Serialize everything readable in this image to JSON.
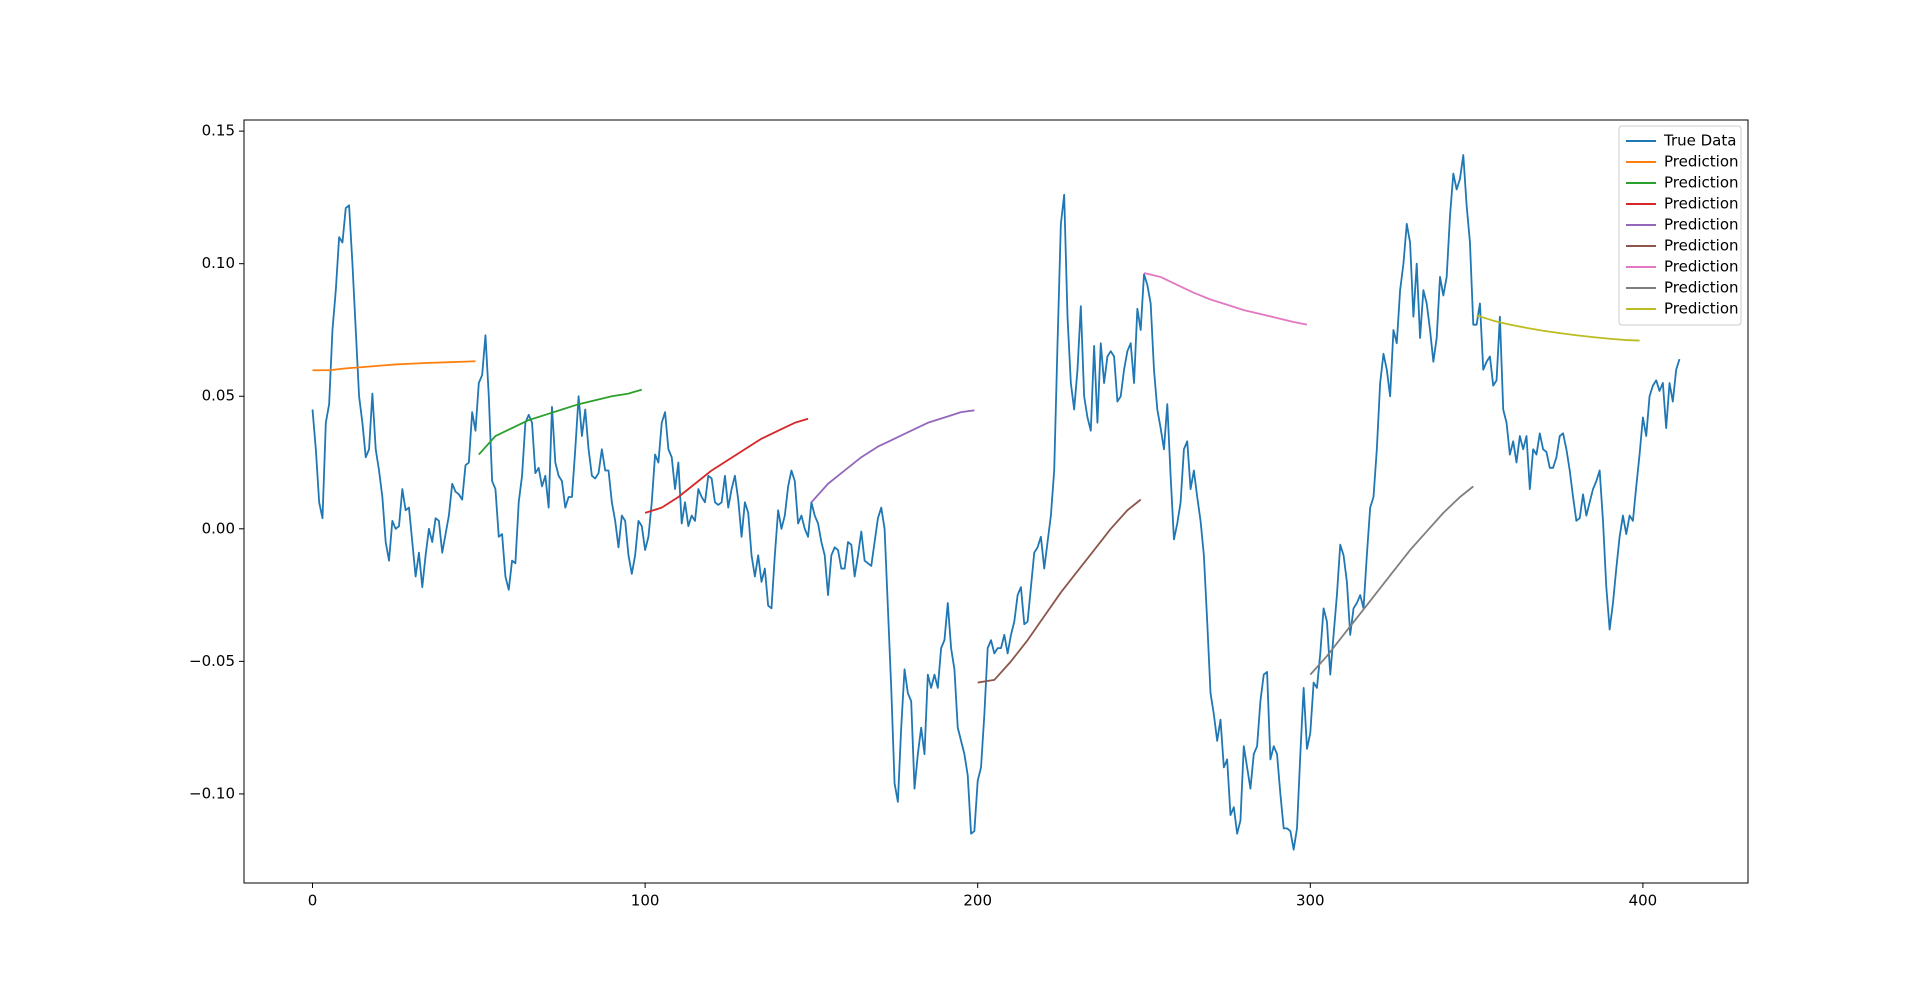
{
  "chart_data": {
    "type": "line",
    "xlim": [
      -20.6,
      431.6
    ],
    "ylim": [
      -0.1336,
      0.1542
    ],
    "xticks": [
      0,
      100,
      200,
      300,
      400
    ],
    "yticks": [
      {
        "value": -0.1,
        "label": "−0.10"
      },
      {
        "value": -0.05,
        "label": "−0.05"
      },
      {
        "value": 0,
        "label": "0.00"
      },
      {
        "value": 0.05,
        "label": "0.05"
      },
      {
        "value": 0.1,
        "label": "0.10"
      },
      0.15
    ],
    "legend": "upper right",
    "series": [
      {
        "name": "True Data",
        "color": "#1f77b4",
        "x": [
          0,
          1,
          2,
          3,
          4,
          5,
          6,
          7,
          8,
          9,
          10,
          11,
          12,
          13,
          14,
          15,
          16,
          17,
          18,
          19,
          20,
          21,
          22,
          23,
          24,
          25,
          26,
          27,
          28,
          29,
          30,
          31,
          32,
          33,
          34,
          35,
          36,
          37,
          38,
          39,
          40,
          41,
          42,
          43,
          44,
          45,
          46,
          47,
          48,
          49,
          50,
          51,
          52,
          53,
          54,
          55,
          56,
          57,
          58,
          59,
          60,
          61,
          62,
          63,
          64,
          65,
          66,
          67,
          68,
          69,
          70,
          71,
          72,
          73,
          74,
          75,
          76,
          77,
          78,
          79,
          80,
          81,
          82,
          83,
          84,
          85,
          86,
          87,
          88,
          89,
          90,
          91,
          92,
          93,
          94,
          95,
          96,
          97,
          98,
          99,
          100,
          101,
          102,
          103,
          104,
          105,
          106,
          107,
          108,
          109,
          110,
          111,
          112,
          113,
          114,
          115,
          116,
          117,
          118,
          119,
          120,
          121,
          122,
          123,
          124,
          125,
          126,
          127,
          128,
          129,
          130,
          131,
          132,
          133,
          134,
          135,
          136,
          137,
          138,
          139,
          140,
          141,
          142,
          143,
          144,
          145,
          146,
          147,
          148,
          149,
          150,
          151,
          152,
          153,
          154,
          155,
          156,
          157,
          158,
          159,
          160,
          161,
          162,
          163,
          164,
          165,
          166,
          167,
          168,
          169,
          170,
          171,
          172,
          173,
          174,
          175,
          176,
          177,
          178,
          179,
          180,
          181,
          182,
          183,
          184,
          185,
          186,
          187,
          188,
          189,
          190,
          191,
          192,
          193,
          194,
          195,
          196,
          197,
          198,
          199,
          200,
          201,
          202,
          203,
          204,
          205,
          206,
          207,
          208,
          209,
          210,
          211,
          212,
          213,
          214,
          215,
          216,
          217,
          218,
          219,
          220,
          221,
          222,
          223,
          224,
          225,
          226,
          227,
          228,
          229,
          230,
          231,
          232,
          233,
          234,
          235,
          236,
          237,
          238,
          239,
          240,
          241,
          242,
          243,
          244,
          245,
          246,
          247,
          248,
          249,
          250,
          251,
          252,
          253,
          254,
          255,
          256,
          257,
          258,
          259,
          260,
          261,
          262,
          263,
          264,
          265,
          266,
          267,
          268,
          269,
          270,
          271,
          272,
          273,
          274,
          275,
          276,
          277,
          278,
          279,
          280,
          281,
          282,
          283,
          284,
          285,
          286,
          287,
          288,
          289,
          290,
          291,
          292,
          293,
          294,
          295,
          296,
          297,
          298,
          299,
          300,
          301,
          302,
          303,
          304,
          305,
          306,
          307,
          308,
          309,
          310,
          311,
          312,
          313,
          314,
          315,
          316,
          317,
          318,
          319,
          320,
          321,
          322,
          323,
          324,
          325,
          326,
          327,
          328,
          329,
          330,
          331,
          332,
          333,
          334,
          335,
          336,
          337,
          338,
          339,
          340,
          341,
          342,
          343,
          344,
          345,
          346,
          347,
          348,
          349,
          350,
          351,
          352,
          353,
          354,
          355,
          356,
          357,
          358,
          359,
          360,
          361,
          362,
          363,
          364,
          365,
          366,
          367,
          368,
          369,
          370,
          371,
          372,
          373,
          374,
          375,
          376,
          377,
          378,
          379,
          380,
          381,
          382,
          383,
          384,
          385,
          386,
          387,
          388,
          389,
          390,
          391,
          392,
          393,
          394,
          395,
          396,
          397,
          398,
          399,
          400,
          401,
          402,
          403,
          404,
          405,
          406,
          407,
          408,
          409,
          410,
          411
        ],
        "values": [
          0.045,
          0.03,
          0.01,
          0.004,
          0.04,
          0.047,
          0.075,
          0.09,
          0.11,
          0.108,
          0.121,
          0.122,
          0.1,
          0.075,
          0.05,
          0.04,
          0.027,
          0.03,
          0.051,
          0.03,
          0.022,
          0.012,
          -0.005,
          -0.012,
          0.003,
          0.0,
          0.001,
          0.015,
          0.007,
          0.008,
          -0.005,
          -0.018,
          -0.009,
          -0.022,
          -0.01,
          0.0,
          -0.005,
          0.004,
          0.003,
          -0.009,
          -0.002,
          0.005,
          0.017,
          0.014,
          0.013,
          0.011,
          0.024,
          0.025,
          0.044,
          0.037,
          0.055,
          0.058,
          0.073,
          0.05,
          0.018,
          0.015,
          -0.003,
          -0.002,
          -0.018,
          -0.023,
          -0.012,
          -0.013,
          0.01,
          0.02,
          0.04,
          0.043,
          0.04,
          0.021,
          0.023,
          0.016,
          0.02,
          0.008,
          0.046,
          0.025,
          0.02,
          0.018,
          0.008,
          0.012,
          0.012,
          0.03,
          0.05,
          0.035,
          0.045,
          0.03,
          0.02,
          0.019,
          0.021,
          0.03,
          0.022,
          0.022,
          0.01,
          0.003,
          -0.007,
          0.005,
          0.003,
          -0.01,
          -0.017,
          -0.01,
          0.003,
          0.001,
          -0.008,
          -0.003,
          0.01,
          0.028,
          0.025,
          0.04,
          0.044,
          0.03,
          0.027,
          0.015,
          0.025,
          0.002,
          0.01,
          0.001,
          0.005,
          0.003,
          0.015,
          0.012,
          0.01,
          0.02,
          0.019,
          0.01,
          0.009,
          0.01,
          0.02,
          0.008,
          0.015,
          0.02,
          0.011,
          -0.003,
          0.01,
          0.006,
          -0.01,
          -0.018,
          -0.01,
          -0.02,
          -0.015,
          -0.029,
          -0.03,
          -0.01,
          0.007,
          0.0,
          0.005,
          0.016,
          0.022,
          0.018,
          0.002,
          0.005,
          0.0,
          -0.003,
          0.01,
          0.005,
          0.002,
          -0.005,
          -0.01,
          -0.025,
          -0.01,
          -0.007,
          -0.008,
          -0.015,
          -0.015,
          -0.005,
          -0.006,
          -0.018,
          -0.01,
          -0.001,
          -0.012,
          -0.013,
          -0.014,
          -0.005,
          0.004,
          0.008,
          0.0,
          -0.03,
          -0.06,
          -0.096,
          -0.103,
          -0.075,
          -0.053,
          -0.062,
          -0.065,
          -0.098,
          -0.085,
          -0.075,
          -0.085,
          -0.055,
          -0.06,
          -0.055,
          -0.06,
          -0.045,
          -0.042,
          -0.028,
          -0.045,
          -0.053,
          -0.075,
          -0.08,
          -0.085,
          -0.093,
          -0.115,
          -0.114,
          -0.095,
          -0.09,
          -0.07,
          -0.045,
          -0.042,
          -0.047,
          -0.045,
          -0.045,
          -0.04,
          -0.047,
          -0.04,
          -0.035,
          -0.025,
          -0.022,
          -0.036,
          -0.035,
          -0.022,
          -0.009,
          -0.007,
          -0.003,
          -0.015,
          -0.005,
          0.005,
          0.022,
          0.07,
          0.115,
          0.126,
          0.08,
          0.055,
          0.045,
          0.06,
          0.084,
          0.05,
          0.042,
          0.037,
          0.069,
          0.04,
          0.07,
          0.055,
          0.065,
          0.067,
          0.065,
          0.048,
          0.05,
          0.06,
          0.067,
          0.07,
          0.055,
          0.083,
          0.075,
          0.096,
          0.092,
          0.085,
          0.06,
          0.045,
          0.038,
          0.03,
          0.047,
          0.02,
          -0.004,
          0.002,
          0.01,
          0.03,
          0.033,
          0.015,
          0.022,
          0.012,
          0.003,
          -0.01,
          -0.035,
          -0.062,
          -0.07,
          -0.08,
          -0.072,
          -0.09,
          -0.087,
          -0.108,
          -0.105,
          -0.115,
          -0.11,
          -0.082,
          -0.09,
          -0.098,
          -0.085,
          -0.082,
          -0.065,
          -0.055,
          -0.054,
          -0.087,
          -0.082,
          -0.085,
          -0.1,
          -0.113,
          -0.113,
          -0.114,
          -0.121,
          -0.113,
          -0.085,
          -0.06,
          -0.083,
          -0.077,
          -0.058,
          -0.06,
          -0.047,
          -0.03,
          -0.035,
          -0.055,
          -0.04,
          -0.025,
          -0.006,
          -0.01,
          -0.02,
          -0.04,
          -0.03,
          -0.028,
          -0.025,
          -0.03,
          -0.01,
          0.008,
          0.012,
          0.03,
          0.055,
          0.066,
          0.06,
          0.05,
          0.075,
          0.07,
          0.09,
          0.1,
          0.115,
          0.108,
          0.08,
          0.1,
          0.072,
          0.09,
          0.085,
          0.075,
          0.063,
          0.072,
          0.095,
          0.088,
          0.095,
          0.118,
          0.134,
          0.128,
          0.132,
          0.141,
          0.122,
          0.108,
          0.077,
          0.077,
          0.085,
          0.06,
          0.063,
          0.065,
          0.054,
          0.056,
          0.08,
          0.045,
          0.04,
          0.028,
          0.033,
          0.025,
          0.035,
          0.03,
          0.035,
          0.015,
          0.03,
          0.028,
          0.036,
          0.03,
          0.029,
          0.023,
          0.023,
          0.027,
          0.035,
          0.036,
          0.03,
          0.022,
          0.012,
          0.003,
          0.004,
          0.013,
          0.005,
          0.01,
          0.015,
          0.018,
          0.022,
          0.003,
          -0.022,
          -0.038,
          -0.028,
          -0.015,
          -0.003,
          0.005,
          -0.002,
          0.005,
          0.003,
          0.016,
          0.028,
          0.042,
          0.035,
          0.05,
          0.054,
          0.056,
          0.052,
          0.055,
          0.038,
          0.055,
          0.048,
          0.06,
          0.064
        ]
      },
      {
        "name": "Prediction",
        "color": "#ff7f0e",
        "x": [
          0,
          5,
          10,
          15,
          20,
          25,
          30,
          35,
          40,
          45,
          49
        ],
        "values": [
          0.0598,
          0.0598,
          0.0605,
          0.061,
          0.0615,
          0.062,
          0.0623,
          0.0626,
          0.0628,
          0.063,
          0.0632
        ]
      },
      {
        "name": "Prediction",
        "color": "#2ca02c",
        "x": [
          50,
          55,
          60,
          65,
          70,
          75,
          80,
          85,
          90,
          95,
          99
        ],
        "values": [
          0.028,
          0.035,
          0.038,
          0.041,
          0.043,
          0.045,
          0.047,
          0.0485,
          0.05,
          0.051,
          0.0525
        ]
      },
      {
        "name": "Prediction",
        "color": "#d62728",
        "x": [
          100,
          105,
          110,
          115,
          120,
          125,
          130,
          135,
          140,
          145,
          149
        ],
        "values": [
          0.006,
          0.008,
          0.012,
          0.017,
          0.022,
          0.026,
          0.03,
          0.034,
          0.037,
          0.04,
          0.0415
        ]
      },
      {
        "name": "Prediction",
        "color": "#9467bd",
        "x": [
          150,
          155,
          160,
          165,
          170,
          175,
          180,
          185,
          190,
          195,
          199
        ],
        "values": [
          0.01,
          0.017,
          0.022,
          0.027,
          0.031,
          0.034,
          0.037,
          0.04,
          0.042,
          0.044,
          0.0447
        ]
      },
      {
        "name": "Prediction",
        "color": "#8c564b",
        "x": [
          200,
          205,
          210,
          215,
          220,
          225,
          230,
          235,
          240,
          245,
          249
        ],
        "values": [
          -0.058,
          -0.057,
          -0.05,
          -0.042,
          -0.033,
          -0.024,
          -0.016,
          -0.008,
          0.0,
          0.007,
          0.011
        ]
      },
      {
        "name": "Prediction",
        "color": "#e377c2",
        "x": [
          250,
          255,
          260,
          265,
          270,
          275,
          280,
          285,
          290,
          295,
          299
        ],
        "values": [
          0.0965,
          0.095,
          0.092,
          0.089,
          0.0865,
          0.0845,
          0.0825,
          0.081,
          0.0795,
          0.078,
          0.077
        ]
      },
      {
        "name": "Prediction",
        "color": "#7f7f7f",
        "x": [
          300,
          305,
          310,
          315,
          320,
          325,
          330,
          335,
          340,
          345,
          349
        ],
        "values": [
          -0.055,
          -0.048,
          -0.04,
          -0.032,
          -0.024,
          -0.016,
          -0.008,
          -0.001,
          0.006,
          0.012,
          0.016
        ]
      },
      {
        "name": "Prediction",
        "color": "#bcbd22",
        "x": [
          350,
          355,
          360,
          365,
          370,
          375,
          380,
          385,
          390,
          395,
          399
        ],
        "values": [
          0.0805,
          0.0785,
          0.077,
          0.0758,
          0.0747,
          0.0738,
          0.073,
          0.0723,
          0.0717,
          0.0712,
          0.071
        ]
      }
    ]
  }
}
